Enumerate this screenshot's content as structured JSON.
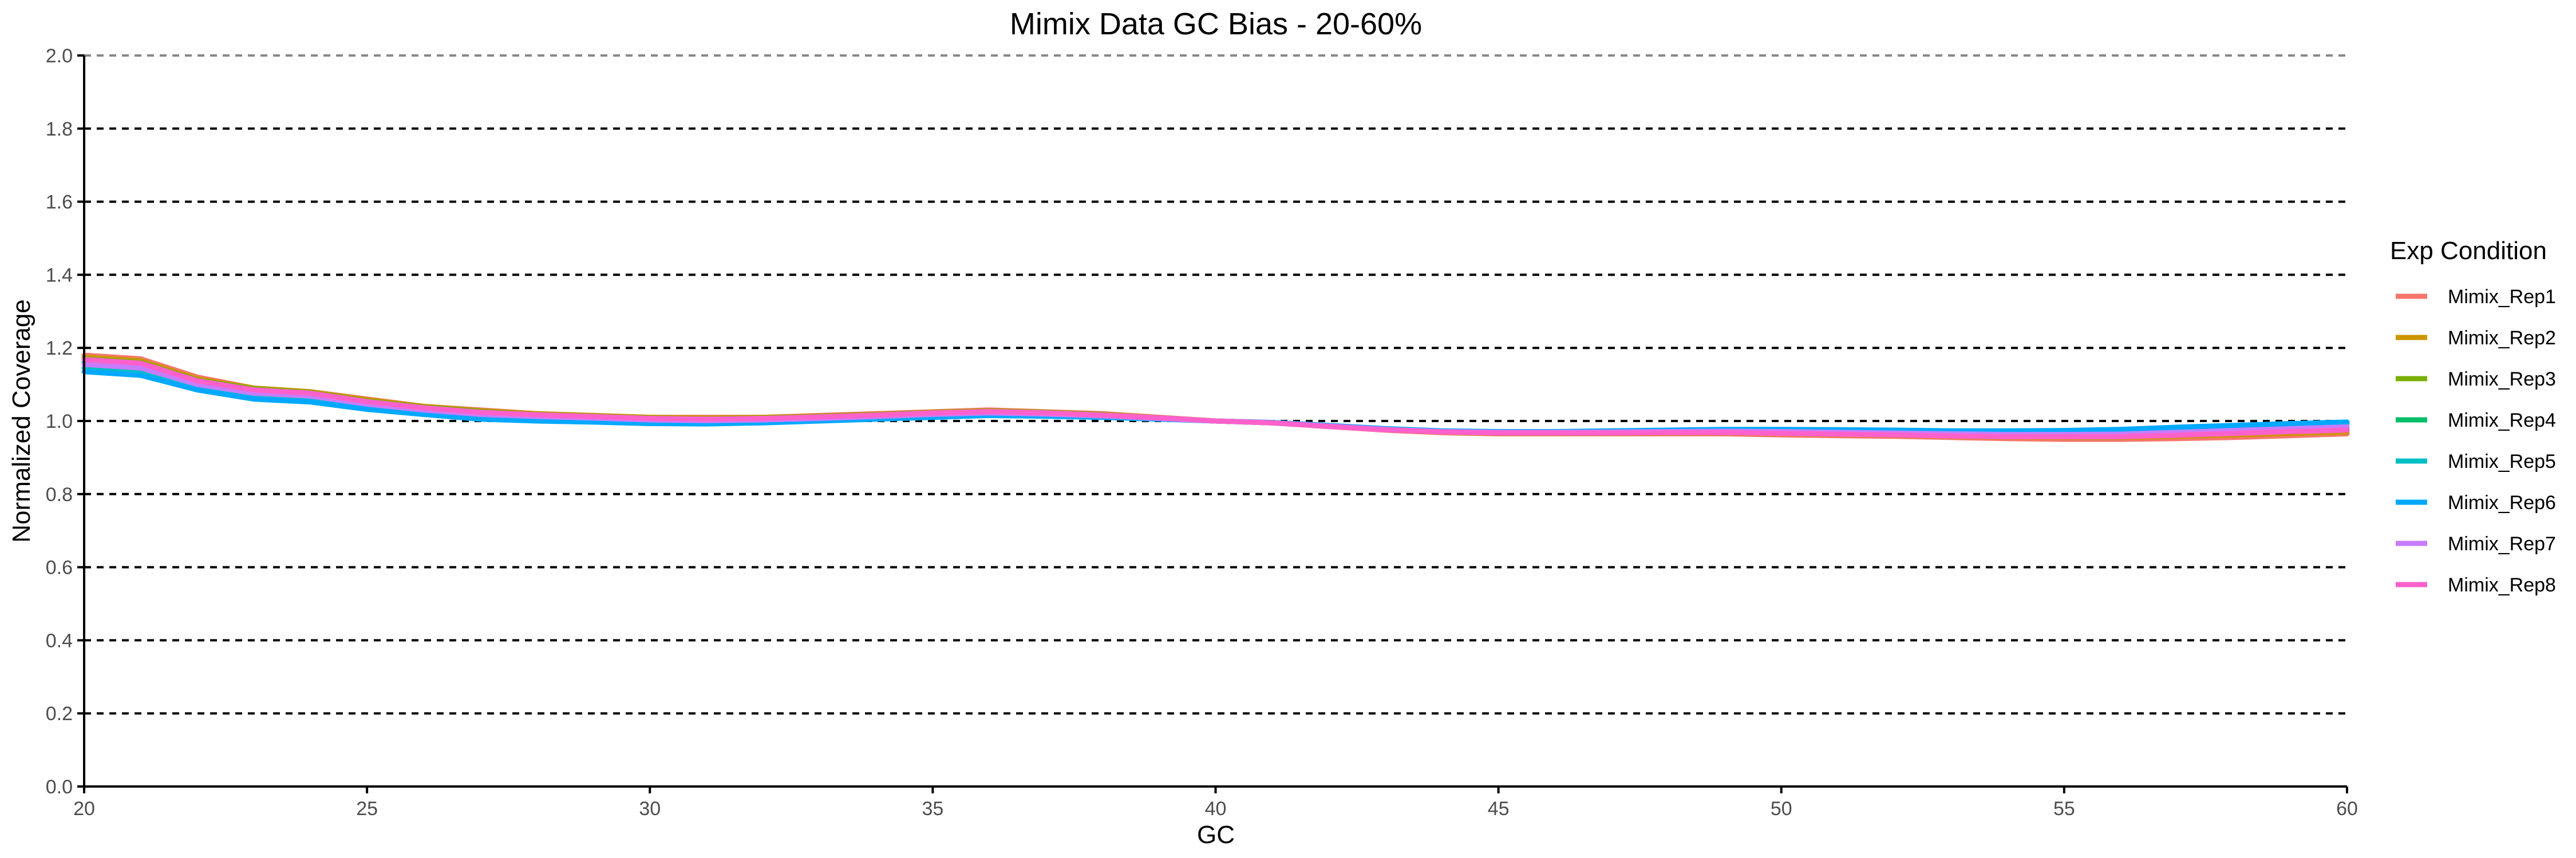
{
  "chart_data": {
    "type": "line",
    "title": "Mimix Data GC Bias - 20-60%",
    "xlabel": "GC",
    "ylabel": "Normalized Coverage",
    "xlim": [
      20,
      60
    ],
    "ylim": [
      0,
      2.0
    ],
    "x_ticks": [
      20,
      25,
      30,
      35,
      40,
      45,
      50,
      55,
      60
    ],
    "y_ticks": [
      0.0,
      0.2,
      0.4,
      0.6,
      0.8,
      1.0,
      1.2,
      1.4,
      1.6,
      1.8,
      2.0
    ],
    "x_tick_labels": [
      "20",
      "25",
      "30",
      "35",
      "40",
      "45",
      "50",
      "55",
      "60"
    ],
    "y_tick_labels": [
      "0.0",
      "0.2",
      "0.4",
      "0.6",
      "0.8",
      "1.0",
      "1.2",
      "1.4",
      "1.6",
      "1.8",
      "2.0"
    ],
    "grid": "horizontal dashed",
    "legend_title": "Exp Condition",
    "legend_position": "right",
    "x": [
      20,
      21,
      22,
      23,
      24,
      25,
      26,
      27,
      28,
      29,
      30,
      31,
      32,
      33,
      34,
      35,
      36,
      37,
      38,
      39,
      40,
      41,
      42,
      43,
      44,
      45,
      46,
      47,
      48,
      49,
      50,
      51,
      52,
      53,
      54,
      55,
      56,
      57,
      58,
      59,
      60
    ],
    "series": [
      {
        "name": "Mimix_Rep1",
        "color": "#F8766D",
        "values": [
          1.18,
          1.17,
          1.12,
          1.09,
          1.08,
          1.06,
          1.04,
          1.03,
          1.02,
          1.015,
          1.01,
          1.01,
          1.01,
          1.015,
          1.02,
          1.025,
          1.03,
          1.025,
          1.02,
          1.01,
          1.0,
          0.995,
          0.985,
          0.975,
          0.968,
          0.965,
          0.965,
          0.965,
          0.965,
          0.965,
          0.962,
          0.96,
          0.958,
          0.955,
          0.952,
          0.95,
          0.95,
          0.952,
          0.955,
          0.96,
          0.965
        ]
      },
      {
        "name": "Mimix_Rep2",
        "color": "#CD9600",
        "values": [
          1.175,
          1.165,
          1.115,
          1.09,
          1.08,
          1.058,
          1.04,
          1.028,
          1.02,
          1.015,
          1.01,
          1.008,
          1.01,
          1.013,
          1.018,
          1.024,
          1.028,
          1.024,
          1.018,
          1.01,
          1.0,
          0.995,
          0.985,
          0.976,
          0.969,
          0.966,
          0.966,
          0.966,
          0.967,
          0.967,
          0.965,
          0.963,
          0.961,
          0.958,
          0.956,
          0.955,
          0.955,
          0.958,
          0.962,
          0.966,
          0.97
        ]
      },
      {
        "name": "Mimix_Rep3",
        "color": "#7CAE00",
        "values": [
          1.17,
          1.16,
          1.112,
          1.088,
          1.078,
          1.055,
          1.038,
          1.026,
          1.018,
          1.013,
          1.008,
          1.006,
          1.008,
          1.012,
          1.017,
          1.023,
          1.027,
          1.023,
          1.017,
          1.009,
          1.0,
          0.995,
          0.986,
          0.977,
          0.97,
          0.967,
          0.967,
          0.968,
          0.968,
          0.969,
          0.967,
          0.965,
          0.963,
          0.96,
          0.958,
          0.958,
          0.958,
          0.962,
          0.967,
          0.972,
          0.976
        ]
      },
      {
        "name": "Mimix_Rep4",
        "color": "#00BE67",
        "values": [
          1.16,
          1.15,
          1.105,
          1.082,
          1.072,
          1.05,
          1.032,
          1.022,
          1.015,
          1.01,
          1.005,
          1.003,
          1.005,
          1.01,
          1.015,
          1.02,
          1.025,
          1.022,
          1.016,
          1.008,
          1.0,
          0.995,
          0.986,
          0.977,
          0.971,
          0.968,
          0.968,
          0.969,
          0.97,
          0.971,
          0.969,
          0.967,
          0.965,
          0.963,
          0.961,
          0.961,
          0.962,
          0.967,
          0.972,
          0.977,
          0.982
        ]
      },
      {
        "name": "Mimix_Rep5",
        "color": "#00BFC4",
        "values": [
          1.145,
          1.135,
          1.095,
          1.072,
          1.065,
          1.042,
          1.028,
          1.015,
          1.01,
          1.005,
          1.0,
          0.998,
          1.0,
          1.004,
          1.008,
          1.014,
          1.018,
          1.015,
          1.012,
          1.006,
          1.0,
          0.996,
          0.987,
          0.978,
          0.972,
          0.97,
          0.97,
          0.971,
          0.973,
          0.974,
          0.973,
          0.972,
          0.97,
          0.968,
          0.967,
          0.968,
          0.97,
          0.976,
          0.982,
          0.988,
          0.993
        ]
      },
      {
        "name": "Mimix_Rep6",
        "color": "#00A9FF",
        "values": [
          1.135,
          1.125,
          1.085,
          1.06,
          1.052,
          1.032,
          1.018,
          1.005,
          1.0,
          0.997,
          0.993,
          0.992,
          0.995,
          1.0,
          1.005,
          1.01,
          1.015,
          1.013,
          1.01,
          1.005,
          1.0,
          0.996,
          0.988,
          0.979,
          0.973,
          0.971,
          0.971,
          0.973,
          0.975,
          0.977,
          0.977,
          0.976,
          0.975,
          0.973,
          0.973,
          0.974,
          0.977,
          0.983,
          0.988,
          0.993,
          0.997
        ]
      },
      {
        "name": "Mimix_Rep7",
        "color": "#C77CFF",
        "values": [
          1.155,
          1.145,
          1.1,
          1.076,
          1.068,
          1.046,
          1.03,
          1.018,
          1.012,
          1.008,
          1.003,
          1.001,
          1.003,
          1.007,
          1.012,
          1.018,
          1.022,
          1.019,
          1.014,
          1.007,
          1.0,
          0.995,
          0.986,
          0.977,
          0.971,
          0.969,
          0.969,
          0.97,
          0.971,
          0.972,
          0.971,
          0.969,
          0.967,
          0.965,
          0.963,
          0.963,
          0.964,
          0.969,
          0.974,
          0.979,
          0.984
        ]
      },
      {
        "name": "Mimix_Rep8",
        "color": "#FF61CC",
        "values": [
          1.168,
          1.158,
          1.11,
          1.085,
          1.076,
          1.053,
          1.036,
          1.024,
          1.017,
          1.012,
          1.007,
          1.005,
          1.007,
          1.011,
          1.016,
          1.022,
          1.026,
          1.022,
          1.016,
          1.009,
          1.0,
          0.995,
          0.985,
          0.976,
          0.97,
          0.967,
          0.967,
          0.967,
          0.968,
          0.968,
          0.966,
          0.964,
          0.962,
          0.959,
          0.957,
          0.957,
          0.957,
          0.961,
          0.966,
          0.971,
          0.975
        ]
      }
    ]
  }
}
